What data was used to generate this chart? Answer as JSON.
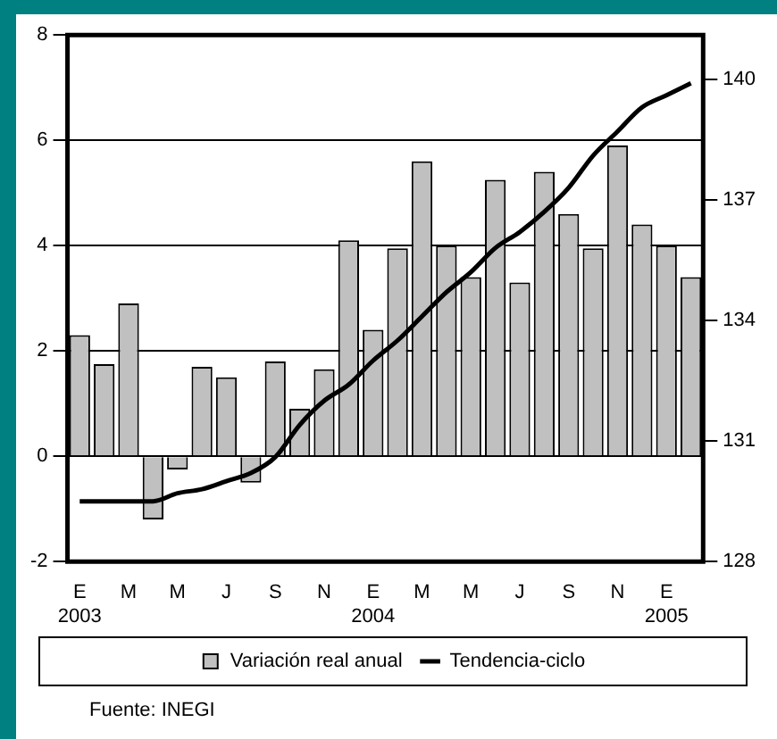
{
  "chart_data": {
    "type": "bar",
    "categories": [
      "E\n2003",
      null,
      "M",
      null,
      "M",
      null,
      "J",
      null,
      "S",
      null,
      "N",
      null,
      "E\n2004",
      null,
      "M",
      null,
      "M",
      null,
      "J",
      null,
      "S",
      null,
      "N",
      null,
      "E\n2005",
      null
    ],
    "series": [
      {
        "name": "Variación real anual",
        "color": "#c0c0c0",
        "values": [
          2.3,
          1.75,
          2.9,
          -1.2,
          -0.25,
          1.7,
          1.5,
          -0.5,
          1.8,
          0.9,
          1.65,
          4.1,
          2.4,
          3.95,
          5.6,
          4.0,
          3.4,
          5.25,
          3.3,
          5.4,
          4.6,
          3.95,
          5.9,
          4.4,
          4.0,
          3.4
        ]
      },
      {
        "name": "Tendencia-ciclo",
        "type": "line",
        "axis": "y2",
        "color": "#000000",
        "values": [
          129.5,
          129.5,
          129.5,
          129.5,
          129.7,
          129.8,
          130.0,
          130.2,
          130.6,
          131.4,
          132.0,
          132.4,
          133.0,
          133.5,
          134.1,
          134.7,
          135.2,
          135.8,
          136.2,
          136.7,
          137.3,
          138.1,
          138.7,
          139.3,
          139.6,
          139.9
        ]
      }
    ],
    "ylim": [
      -2,
      8
    ],
    "yticks": [
      -2,
      0,
      2,
      4,
      6,
      8
    ],
    "y2lim": [
      128,
      141.1
    ],
    "y2ticks": [
      128,
      131,
      134,
      137,
      140
    ],
    "grid": "y",
    "legend": "bottom",
    "marker": "none",
    "line_style": "solid",
    "annotations": [
      "Fuente: INEGI"
    ]
  }
}
